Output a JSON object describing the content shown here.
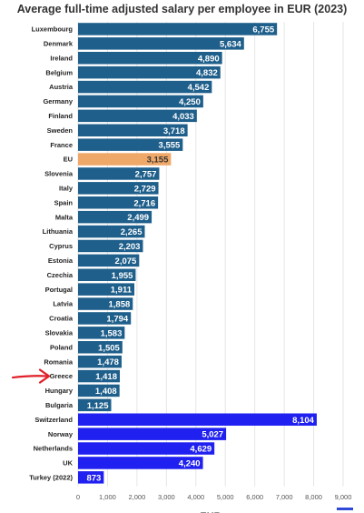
{
  "chart_data": {
    "type": "bar",
    "orientation": "horizontal",
    "title": "Average full-time adjusted salary per employee in EUR (2023)",
    "xlabel": "EUR",
    "ylabel": "",
    "xlim": [
      0,
      9000
    ],
    "xticks": [
      0,
      1000,
      2000,
      3000,
      4000,
      5000,
      6000,
      7000,
      8000,
      9000
    ],
    "xtick_labels": [
      "0",
      "1,000",
      "2,000",
      "3,000",
      "4,000",
      "5,000",
      "6,000",
      "7,000",
      "8,000",
      "9,000"
    ],
    "grid": "vertical",
    "categories": [
      "Luxembourg",
      "Denmark",
      "Ireland",
      "Belgium",
      "Austria",
      "Germany",
      "Finland",
      "Sweden",
      "France",
      "EU",
      "Slovenia",
      "Italy",
      "Spain",
      "Malta",
      "Lithuania",
      "Cyprus",
      "Estonia",
      "Czechia",
      "Portugal",
      "Latvia",
      "Croatia",
      "Slovakia",
      "Poland",
      "Romania",
      "Greece",
      "Hungary",
      "Bulgaria",
      "Switzerland",
      "Norway",
      "Netherlands",
      "UK",
      "Turkey (2022)"
    ],
    "values": [
      6755,
      5634,
      4890,
      4832,
      4542,
      4250,
      4033,
      3718,
      3555,
      3155,
      2757,
      2729,
      2716,
      2499,
      2265,
      2203,
      2075,
      1955,
      1911,
      1858,
      1794,
      1583,
      1505,
      1478,
      1418,
      1408,
      1125,
      8104,
      5027,
      4629,
      4240,
      873
    ],
    "value_labels": [
      "6,755",
      "5,634",
      "4,890",
      "4,832",
      "4,542",
      "4,250",
      "4,033",
      "3,718",
      "3,555",
      "3,155",
      "2,757",
      "2,729",
      "2,716",
      "2,499",
      "2,265",
      "2,203",
      "2,075",
      "1,955",
      "1,911",
      "1,858",
      "1,794",
      "1,583",
      "1,505",
      "1,478",
      "1,418",
      "1,408",
      "1,125",
      "8,104",
      "5,027",
      "4,629",
      "4,240",
      "873"
    ],
    "groups": [
      "eu",
      "eu",
      "eu",
      "eu",
      "eu",
      "eu",
      "eu",
      "eu",
      "eu",
      "eu-average",
      "eu",
      "eu",
      "eu",
      "eu",
      "eu",
      "eu",
      "eu",
      "eu",
      "eu",
      "eu",
      "eu",
      "eu",
      "eu",
      "eu",
      "eu",
      "eu",
      "eu",
      "non-eu",
      "non-eu",
      "non-eu",
      "non-eu",
      "non-eu"
    ],
    "colors": {
      "eu": "#1f5f8b",
      "eu-average": "#f0a868",
      "non-eu": "#2020f0",
      "grid": "#e6e6e6",
      "text": "#222222",
      "arrow": "#e0202a"
    },
    "annotations": [
      {
        "type": "arrow",
        "color": "#e0202a",
        "points_to": "Greece"
      }
    ]
  }
}
